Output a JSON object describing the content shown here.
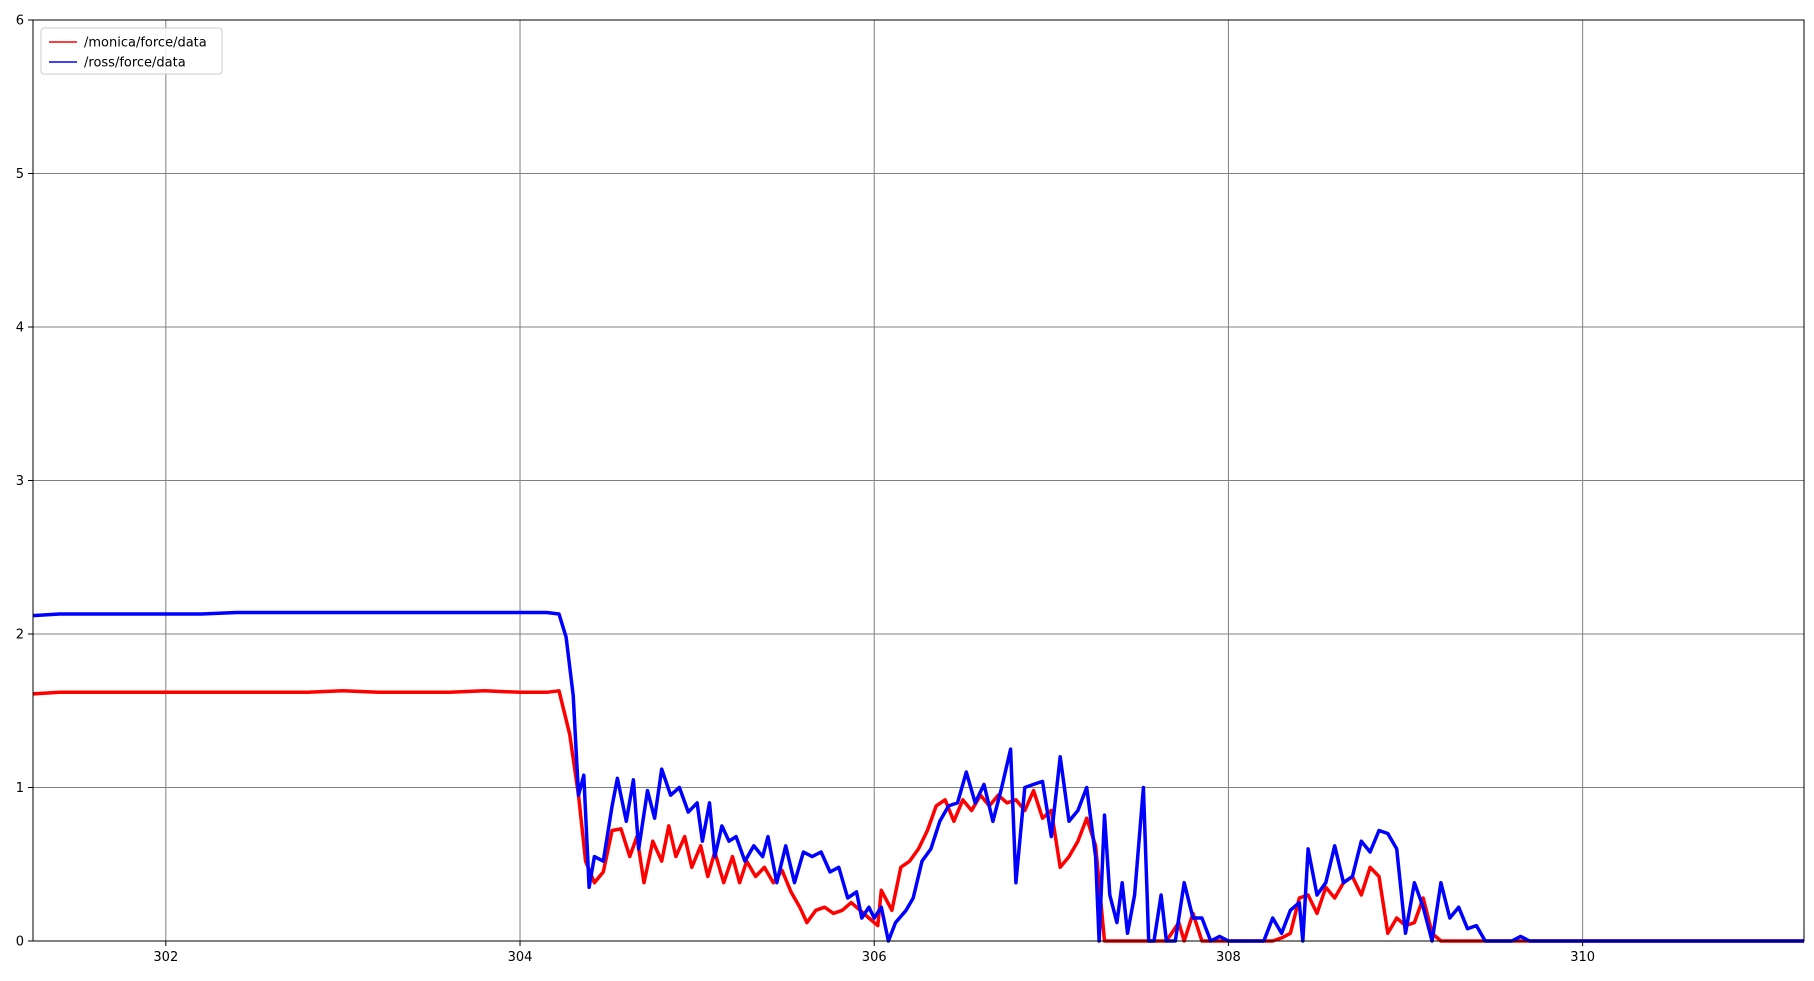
{
  "chart_data": {
    "type": "line",
    "title": "",
    "xlabel": "",
    "ylabel": "",
    "xlim": [
      301.25,
      311.25
    ],
    "ylim": [
      0,
      6
    ],
    "x_ticks": [
      302,
      304,
      306,
      308,
      310
    ],
    "y_ticks": [
      0,
      1,
      2,
      3,
      4,
      5,
      6
    ],
    "grid": true,
    "legend_position": "top-left",
    "series": [
      {
        "name": "/monica/force/data",
        "color": "#ff0000",
        "points": [
          [
            301.25,
            1.61
          ],
          [
            301.4,
            1.62
          ],
          [
            301.6,
            1.62
          ],
          [
            301.8,
            1.62
          ],
          [
            302.0,
            1.62
          ],
          [
            302.2,
            1.62
          ],
          [
            302.4,
            1.62
          ],
          [
            302.6,
            1.62
          ],
          [
            302.8,
            1.62
          ],
          [
            303.0,
            1.63
          ],
          [
            303.2,
            1.62
          ],
          [
            303.4,
            1.62
          ],
          [
            303.6,
            1.62
          ],
          [
            303.8,
            1.63
          ],
          [
            304.0,
            1.62
          ],
          [
            304.15,
            1.62
          ],
          [
            304.22,
            1.63
          ],
          [
            304.28,
            1.35
          ],
          [
            304.33,
            0.95
          ],
          [
            304.37,
            0.52
          ],
          [
            304.42,
            0.38
          ],
          [
            304.47,
            0.45
          ],
          [
            304.52,
            0.72
          ],
          [
            304.57,
            0.73
          ],
          [
            304.62,
            0.55
          ],
          [
            304.66,
            0.68
          ],
          [
            304.7,
            0.38
          ],
          [
            304.75,
            0.65
          ],
          [
            304.8,
            0.52
          ],
          [
            304.84,
            0.75
          ],
          [
            304.88,
            0.55
          ],
          [
            304.93,
            0.68
          ],
          [
            304.97,
            0.48
          ],
          [
            305.02,
            0.62
          ],
          [
            305.06,
            0.42
          ],
          [
            305.1,
            0.58
          ],
          [
            305.15,
            0.38
          ],
          [
            305.2,
            0.55
          ],
          [
            305.24,
            0.38
          ],
          [
            305.28,
            0.52
          ],
          [
            305.33,
            0.42
          ],
          [
            305.38,
            0.48
          ],
          [
            305.43,
            0.38
          ],
          [
            305.48,
            0.46
          ],
          [
            305.53,
            0.32
          ],
          [
            305.58,
            0.22
          ],
          [
            305.62,
            0.12
          ],
          [
            305.67,
            0.2
          ],
          [
            305.72,
            0.22
          ],
          [
            305.77,
            0.18
          ],
          [
            305.82,
            0.2
          ],
          [
            305.87,
            0.25
          ],
          [
            305.92,
            0.2
          ],
          [
            305.97,
            0.15
          ],
          [
            306.02,
            0.1
          ],
          [
            306.04,
            0.33
          ],
          [
            306.1,
            0.2
          ],
          [
            306.15,
            0.48
          ],
          [
            306.2,
            0.52
          ],
          [
            306.25,
            0.6
          ],
          [
            306.3,
            0.72
          ],
          [
            306.35,
            0.88
          ],
          [
            306.4,
            0.92
          ],
          [
            306.45,
            0.78
          ],
          [
            306.5,
            0.92
          ],
          [
            306.55,
            0.85
          ],
          [
            306.6,
            0.95
          ],
          [
            306.65,
            0.88
          ],
          [
            306.7,
            0.95
          ],
          [
            306.75,
            0.9
          ],
          [
            306.8,
            0.92
          ],
          [
            306.85,
            0.85
          ],
          [
            306.9,
            0.98
          ],
          [
            306.95,
            0.8
          ],
          [
            307.0,
            0.85
          ],
          [
            307.05,
            0.48
          ],
          [
            307.1,
            0.55
          ],
          [
            307.15,
            0.65
          ],
          [
            307.2,
            0.8
          ],
          [
            307.25,
            0.62
          ],
          [
            307.3,
            0.0
          ],
          [
            307.5,
            0.0
          ],
          [
            307.65,
            0.0
          ],
          [
            307.72,
            0.12
          ],
          [
            307.75,
            0.0
          ],
          [
            307.8,
            0.18
          ],
          [
            307.85,
            0.0
          ],
          [
            308.0,
            0.0
          ],
          [
            308.25,
            0.0
          ],
          [
            308.3,
            0.02
          ],
          [
            308.35,
            0.05
          ],
          [
            308.4,
            0.28
          ],
          [
            308.45,
            0.3
          ],
          [
            308.5,
            0.18
          ],
          [
            308.55,
            0.35
          ],
          [
            308.6,
            0.28
          ],
          [
            308.65,
            0.38
          ],
          [
            308.7,
            0.42
          ],
          [
            308.75,
            0.3
          ],
          [
            308.8,
            0.48
          ],
          [
            308.85,
            0.42
          ],
          [
            308.9,
            0.05
          ],
          [
            308.95,
            0.15
          ],
          [
            309.0,
            0.1
          ],
          [
            309.05,
            0.12
          ],
          [
            309.1,
            0.28
          ],
          [
            309.15,
            0.05
          ],
          [
            309.2,
            0.0
          ],
          [
            311.25,
            0.0
          ]
        ]
      },
      {
        "name": "/ross/force/data",
        "color": "#0000ff",
        "points": [
          [
            301.25,
            2.12
          ],
          [
            301.4,
            2.13
          ],
          [
            301.6,
            2.13
          ],
          [
            301.8,
            2.13
          ],
          [
            302.0,
            2.13
          ],
          [
            302.2,
            2.13
          ],
          [
            302.4,
            2.14
          ],
          [
            302.6,
            2.14
          ],
          [
            302.8,
            2.14
          ],
          [
            303.0,
            2.14
          ],
          [
            303.2,
            2.14
          ],
          [
            303.4,
            2.14
          ],
          [
            303.6,
            2.14
          ],
          [
            303.8,
            2.14
          ],
          [
            304.0,
            2.14
          ],
          [
            304.15,
            2.14
          ],
          [
            304.22,
            2.13
          ],
          [
            304.26,
            1.98
          ],
          [
            304.3,
            1.6
          ],
          [
            304.33,
            0.95
          ],
          [
            304.36,
            1.08
          ],
          [
            304.39,
            0.35
          ],
          [
            304.42,
            0.55
          ],
          [
            304.47,
            0.52
          ],
          [
            304.52,
            0.88
          ],
          [
            304.55,
            1.06
          ],
          [
            304.6,
            0.78
          ],
          [
            304.64,
            1.05
          ],
          [
            304.67,
            0.6
          ],
          [
            304.72,
            0.98
          ],
          [
            304.76,
            0.8
          ],
          [
            304.8,
            1.12
          ],
          [
            304.85,
            0.95
          ],
          [
            304.9,
            1.0
          ],
          [
            304.95,
            0.84
          ],
          [
            305.0,
            0.9
          ],
          [
            305.03,
            0.65
          ],
          [
            305.07,
            0.9
          ],
          [
            305.1,
            0.55
          ],
          [
            305.14,
            0.75
          ],
          [
            305.18,
            0.65
          ],
          [
            305.22,
            0.68
          ],
          [
            305.27,
            0.52
          ],
          [
            305.32,
            0.62
          ],
          [
            305.37,
            0.55
          ],
          [
            305.4,
            0.68
          ],
          [
            305.45,
            0.38
          ],
          [
            305.5,
            0.62
          ],
          [
            305.55,
            0.38
          ],
          [
            305.6,
            0.58
          ],
          [
            305.65,
            0.55
          ],
          [
            305.7,
            0.58
          ],
          [
            305.75,
            0.45
          ],
          [
            305.8,
            0.48
          ],
          [
            305.85,
            0.28
          ],
          [
            305.9,
            0.32
          ],
          [
            305.93,
            0.15
          ],
          [
            305.97,
            0.22
          ],
          [
            306.0,
            0.15
          ],
          [
            306.04,
            0.22
          ],
          [
            306.08,
            0.0
          ],
          [
            306.12,
            0.12
          ],
          [
            306.18,
            0.2
          ],
          [
            306.22,
            0.28
          ],
          [
            306.27,
            0.52
          ],
          [
            306.32,
            0.6
          ],
          [
            306.37,
            0.78
          ],
          [
            306.42,
            0.88
          ],
          [
            306.47,
            0.9
          ],
          [
            306.52,
            1.1
          ],
          [
            306.57,
            0.9
          ],
          [
            306.62,
            1.02
          ],
          [
            306.67,
            0.78
          ],
          [
            306.72,
            1.0
          ],
          [
            306.77,
            1.25
          ],
          [
            306.8,
            0.38
          ],
          [
            306.85,
            1.0
          ],
          [
            306.9,
            1.02
          ],
          [
            306.95,
            1.04
          ],
          [
            307.0,
            0.68
          ],
          [
            307.05,
            1.2
          ],
          [
            307.1,
            0.78
          ],
          [
            307.15,
            0.85
          ],
          [
            307.2,
            1.0
          ],
          [
            307.25,
            0.55
          ],
          [
            307.27,
            0.0
          ],
          [
            307.3,
            0.82
          ],
          [
            307.33,
            0.3
          ],
          [
            307.37,
            0.12
          ],
          [
            307.4,
            0.38
          ],
          [
            307.43,
            0.05
          ],
          [
            307.47,
            0.3
          ],
          [
            307.52,
            1.0
          ],
          [
            307.55,
            0.0
          ],
          [
            307.58,
            0.0
          ],
          [
            307.62,
            0.3
          ],
          [
            307.65,
            0.0
          ],
          [
            307.7,
            0.0
          ],
          [
            307.75,
            0.38
          ],
          [
            307.8,
            0.15
          ],
          [
            307.85,
            0.15
          ],
          [
            307.9,
            0.0
          ],
          [
            307.95,
            0.03
          ],
          [
            308.0,
            0.0
          ],
          [
            308.2,
            0.0
          ],
          [
            308.25,
            0.15
          ],
          [
            308.3,
            0.05
          ],
          [
            308.35,
            0.2
          ],
          [
            308.4,
            0.25
          ],
          [
            308.42,
            0.0
          ],
          [
            308.45,
            0.6
          ],
          [
            308.5,
            0.3
          ],
          [
            308.55,
            0.38
          ],
          [
            308.6,
            0.62
          ],
          [
            308.65,
            0.38
          ],
          [
            308.7,
            0.42
          ],
          [
            308.75,
            0.65
          ],
          [
            308.8,
            0.58
          ],
          [
            308.85,
            0.72
          ],
          [
            308.9,
            0.7
          ],
          [
            308.95,
            0.6
          ],
          [
            309.0,
            0.05
          ],
          [
            309.05,
            0.38
          ],
          [
            309.1,
            0.22
          ],
          [
            309.15,
            0.0
          ],
          [
            309.2,
            0.38
          ],
          [
            309.25,
            0.15
          ],
          [
            309.3,
            0.22
          ],
          [
            309.35,
            0.08
          ],
          [
            309.4,
            0.1
          ],
          [
            309.45,
            0.0
          ],
          [
            309.6,
            0.0
          ],
          [
            309.65,
            0.03
          ],
          [
            309.7,
            0.0
          ],
          [
            311.25,
            0.0
          ]
        ]
      }
    ]
  }
}
